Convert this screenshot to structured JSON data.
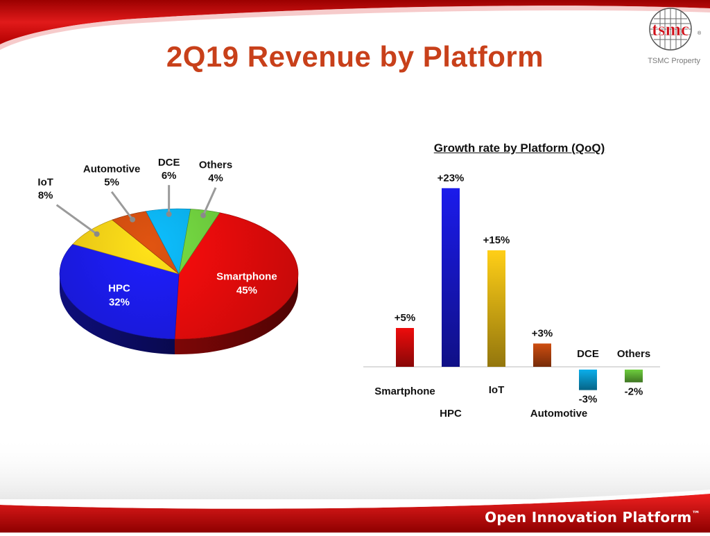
{
  "slide": {
    "title": "2Q19 Revenue by Platform",
    "logo_text": "tsmc",
    "logo_mark": "®",
    "property_label": "TSMC Property",
    "footer_text": "Open Innovation Platform",
    "footer_tm": "™"
  },
  "colors": {
    "title": "#c8401a",
    "banner_red": "#d40c0c",
    "Smartphone": "#e30b0b",
    "HPC": "#1a1ae0",
    "IoT": "#f5c516",
    "Automotive": "#c4490f",
    "DCE": "#0aa6e0",
    "Others": "#69c43b"
  },
  "chart_data": [
    {
      "type": "pie",
      "title": "",
      "slices": [
        {
          "name": "Smartphone",
          "value": 45,
          "label": "45%"
        },
        {
          "name": "HPC",
          "value": 32,
          "label": "32%"
        },
        {
          "name": "IoT",
          "value": 8,
          "label": "8%"
        },
        {
          "name": "Automotive",
          "value": 5,
          "label": "5%"
        },
        {
          "name": "DCE",
          "value": 6,
          "label": "6%"
        },
        {
          "name": "Others",
          "value": 4,
          "label": "4%"
        }
      ]
    },
    {
      "type": "bar",
      "title": "Growth rate by Platform (QoQ)",
      "categories": [
        "Smartphone",
        "HPC",
        "IoT",
        "Automotive",
        "DCE",
        "Others"
      ],
      "values": [
        5,
        23,
        15,
        3,
        -3,
        -2
      ],
      "value_labels": [
        "+5%",
        "+23%",
        "+15%",
        "+3%",
        "-3%",
        "-2%"
      ],
      "ylim": [
        -3,
        23
      ],
      "grid": false,
      "legend": "none"
    }
  ]
}
